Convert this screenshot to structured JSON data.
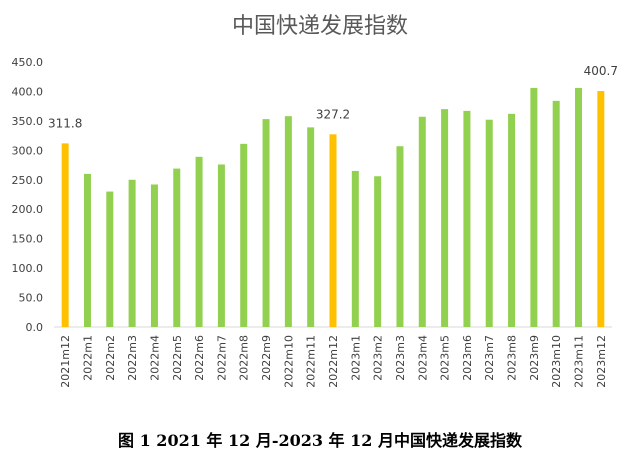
{
  "chart_data": {
    "type": "bar",
    "title": "中国快递发展指数",
    "caption": "图 1 2021 年 12 月-2023 年 12 月中国快递发展指数",
    "categories": [
      "2021m12",
      "2022m1",
      "2022m2",
      "2022m3",
      "2022m4",
      "2022m5",
      "2022m6",
      "2022m7",
      "2022m8",
      "2022m9",
      "2022m10",
      "2022m11",
      "2022m12",
      "2023m1",
      "2023m2",
      "2023m3",
      "2023m4",
      "2023m5",
      "2023m6",
      "2023m7",
      "2023m8",
      "2023m9",
      "2023m10",
      "2023m11",
      "2023m12"
    ],
    "values": [
      311.8,
      260,
      230,
      250,
      242,
      269,
      289,
      276,
      311,
      353,
      358,
      339,
      327.2,
      265,
      256,
      307,
      357,
      370,
      367,
      352,
      362,
      406,
      384,
      406,
      400.7
    ],
    "highlight_indices": [
      0,
      12,
      24
    ],
    "data_labels": [
      {
        "index": 0,
        "text": "311.8"
      },
      {
        "index": 12,
        "text": "327.2"
      },
      {
        "index": 24,
        "text": "400.7"
      }
    ],
    "yticks": [
      "0.0",
      "50.0",
      "100.0",
      "150.0",
      "200.0",
      "250.0",
      "300.0",
      "350.0",
      "400.0",
      "450.0"
    ],
    "ylim": [
      0,
      450
    ],
    "grid": false,
    "colors": {
      "bar": "#92d050",
      "highlight": "#ffc000",
      "axis": "#d9d9d9",
      "text": "#404040",
      "title": "#595959"
    }
  }
}
